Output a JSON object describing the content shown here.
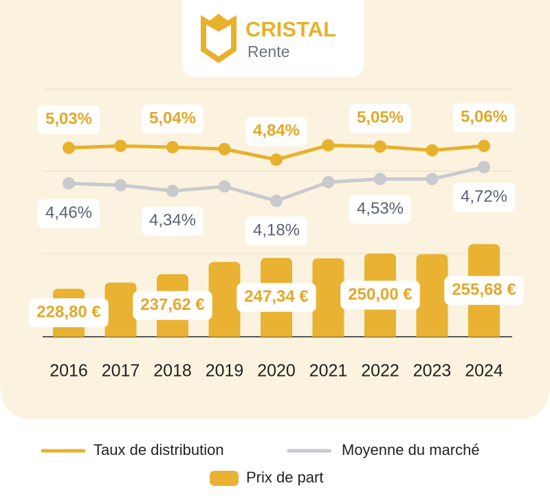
{
  "logo": {
    "brand": "CRISTAL",
    "product": "Rente"
  },
  "chart_data": {
    "type": "combo",
    "categories": [
      "2016",
      "2017",
      "2018",
      "2019",
      "2020",
      "2021",
      "2022",
      "2023",
      "2024"
    ],
    "ylim": [
      3.5,
      6
    ],
    "y2lim": [
      200,
      300
    ],
    "series": [
      {
        "name": "Taux de distribution",
        "type": "line",
        "color": "#e8b12c",
        "values": [
          5.03,
          5.06,
          5.04,
          5.01,
          4.84,
          5.07,
          5.05,
          4.99,
          5.06
        ],
        "value_labels": [
          "5,03%",
          null,
          "5,04%",
          null,
          "4,84%",
          null,
          "5,05%",
          null,
          "5,06%"
        ]
      },
      {
        "name": "Moyenne du marché",
        "type": "line",
        "color": "#c9cacd",
        "values": [
          4.46,
          4.43,
          4.34,
          4.41,
          4.18,
          4.48,
          4.53,
          4.53,
          4.72
        ],
        "value_labels": [
          "4,46%",
          null,
          "4,34%",
          null,
          "4,18%",
          null,
          "4,53%",
          null,
          "4,72%"
        ]
      },
      {
        "name": "Prix de part",
        "type": "bar",
        "axis": "y2",
        "color": "#e9b232",
        "values": [
          228.8,
          232.6,
          237.62,
          245,
          247.34,
          247.1,
          250,
          249.6,
          255.68
        ],
        "value_labels": [
          "228,80 €",
          null,
          "237,62 €",
          null,
          "247,34 €",
          null,
          "250,00 €",
          null,
          "255,68 €"
        ]
      }
    ]
  }
}
